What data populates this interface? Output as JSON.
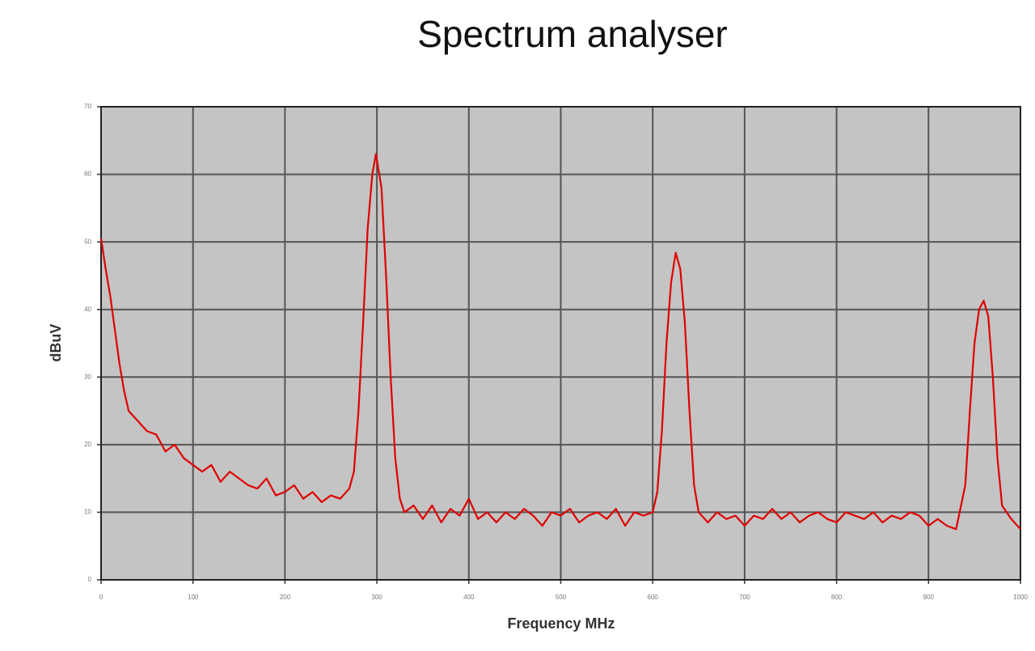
{
  "chart_data": {
    "type": "line",
    "title": "Spectrum analyser",
    "xlabel": "Frequency MHz",
    "ylabel": "dBuV",
    "color": "#e00000",
    "grid": true,
    "xlim": [
      0,
      1000
    ],
    "xticks": [
      0,
      100,
      200,
      300,
      400,
      500,
      600,
      700,
      800,
      900,
      1000
    ],
    "ylim": [
      0,
      70
    ],
    "yticks": [
      0,
      10,
      20,
      30,
      40,
      50,
      60,
      70
    ],
    "x": [
      0,
      5,
      10,
      15,
      20,
      25,
      30,
      40,
      50,
      60,
      70,
      80,
      90,
      100,
      110,
      120,
      130,
      140,
      150,
      160,
      170,
      180,
      190,
      200,
      210,
      220,
      230,
      240,
      250,
      260,
      270,
      275,
      280,
      285,
      290,
      295,
      299,
      305,
      310,
      315,
      320,
      325,
      330,
      340,
      350,
      360,
      370,
      380,
      390,
      400,
      410,
      420,
      430,
      440,
      450,
      460,
      470,
      480,
      490,
      500,
      510,
      520,
      530,
      540,
      550,
      560,
      570,
      580,
      590,
      600,
      605,
      610,
      615,
      620,
      625,
      630,
      635,
      640,
      645,
      650,
      660,
      670,
      680,
      690,
      700,
      710,
      720,
      730,
      740,
      750,
      760,
      770,
      780,
      790,
      800,
      810,
      820,
      830,
      840,
      850,
      860,
      870,
      880,
      890,
      900,
      910,
      920,
      930,
      940,
      945,
      950,
      955,
      960,
      965,
      970,
      975,
      980,
      990,
      1000
    ],
    "values": [
      50.5,
      46,
      42,
      37,
      32,
      28,
      25,
      23.5,
      22,
      21.5,
      19,
      20,
      18,
      17,
      16,
      17,
      14.5,
      16,
      15,
      14,
      13.5,
      15,
      12.5,
      13,
      14,
      12,
      13,
      11.5,
      12.5,
      12,
      13.5,
      16,
      25,
      38,
      52,
      60,
      63,
      58,
      45,
      30,
      18,
      12,
      10,
      11,
      9,
      11,
      8.5,
      10.5,
      9.5,
      12,
      9,
      10,
      8.5,
      10,
      9,
      10.5,
      9.5,
      8,
      10,
      9.5,
      10.5,
      8.5,
      9.5,
      10,
      9,
      10.5,
      8,
      10,
      9.5,
      10,
      13,
      22,
      35,
      44,
      48.4,
      46,
      38,
      25,
      14,
      10,
      8.5,
      10,
      9,
      9.5,
      8,
      9.5,
      9,
      10.5,
      9,
      10,
      8.5,
      9.5,
      10,
      9,
      8.5,
      10,
      9.5,
      9,
      10,
      8.5,
      9.5,
      9,
      10,
      9.5,
      8,
      9,
      8,
      7.5,
      14,
      25,
      35,
      40,
      41.3,
      39,
      30,
      18,
      11,
      9,
      7.5
    ]
  }
}
